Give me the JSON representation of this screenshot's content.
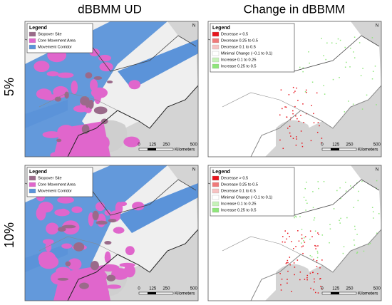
{
  "columns": [
    {
      "title": "dBBMM UD",
      "legend": {
        "title": "Legend",
        "items": [
          {
            "label": "Stopover Site",
            "color": "#9a6a8a"
          },
          {
            "label": "Core Movement Area",
            "color": "#e066cc"
          },
          {
            "label": "Movement Corridor",
            "color": "#5b93d9"
          }
        ]
      }
    },
    {
      "title": "Change in dBBMM",
      "legend": {
        "title": "Legend",
        "items": [
          {
            "label": "Decrease > 0.5",
            "color": "#e8141c"
          },
          {
            "label": "Decrease 0.25 to 0.5",
            "color": "#f07a7a"
          },
          {
            "label": "Decrease 0.1 to 0.5",
            "color": "#f7c2c2"
          },
          {
            "label": "Minimal Change (−0.1 to 0.1)",
            "color": "#ffffff"
          },
          {
            "label": "Increase 0.1 to 0.25",
            "color": "#c6f2b8"
          },
          {
            "label": "Increase 0.25 to 0.5",
            "color": "#8ee67a"
          }
        ]
      }
    }
  ],
  "rows": [
    {
      "label": "5%"
    },
    {
      "label": "10%"
    }
  ],
  "scale_bar": {
    "ticks": [
      "0",
      "125",
      "250",
      "500"
    ],
    "unit": "Kilometers"
  },
  "north": "N"
}
